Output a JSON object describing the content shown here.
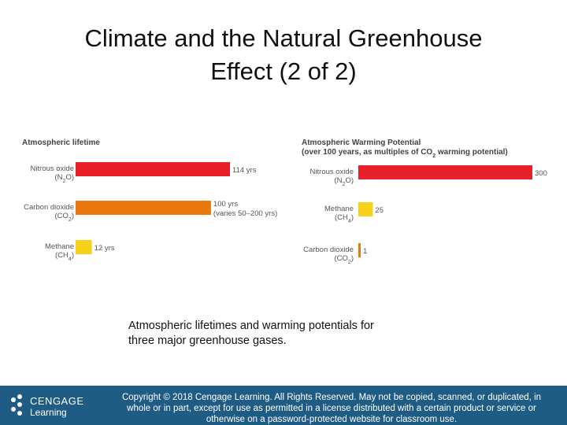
{
  "slide": {
    "title_line1": "Climate and the Natural Greenhouse",
    "title_line2": "Effect (2 of 2)",
    "caption_line1": "Atmospheric lifetimes and warming potentials for",
    "caption_line2": "three major greenhouse gases.",
    "copyright_line1": "Copyright © 2018 Cengage Learning. All Rights Reserved. May not be copied, scanned, or duplicated, in",
    "copyright_line2": "whole or in part, except for use as permitted in a license distributed with a certain product or service or",
    "copyright_line3": "otherwise on a password-protected website for classroom use.",
    "logo_top": "CENGAGE",
    "logo_bottom": "Learning"
  },
  "chart_data": [
    {
      "type": "bar",
      "orientation": "horizontal",
      "title": "Atmospheric lifetime",
      "units": "years",
      "categories": [
        {
          "name": "Nitrous oxide",
          "formula": "(N2O)"
        },
        {
          "name": "Carbon dioxide",
          "formula": "(CO2)"
        },
        {
          "name": "Methane",
          "formula": "(CH4)"
        }
      ],
      "values": [
        114,
        100,
        12
      ],
      "value_labels": [
        [
          "114 yrs"
        ],
        [
          "100 yrs",
          "(varies 50–200 yrs)"
        ],
        [
          "12 yrs"
        ]
      ],
      "colors": [
        "#e8202a",
        "#e8780f",
        "#f7d117"
      ]
    },
    {
      "type": "bar",
      "orientation": "horizontal",
      "title": "Atmospheric Warming Potential",
      "subtitle": "(over 100 years, as multiples of CO2 warming potential)",
      "categories": [
        {
          "name": "Nitrous oxide",
          "formula": "(N2O)"
        },
        {
          "name": "Methane",
          "formula": "(CH4)"
        },
        {
          "name": "Carbon dioxide",
          "formula": "(CO2)"
        }
      ],
      "values": [
        300,
        25,
        1
      ],
      "value_labels": [
        [
          "300"
        ],
        [
          "25"
        ],
        [
          "1"
        ]
      ],
      "colors": [
        "#e8202a",
        "#f7d117",
        "#e8780f"
      ]
    }
  ]
}
